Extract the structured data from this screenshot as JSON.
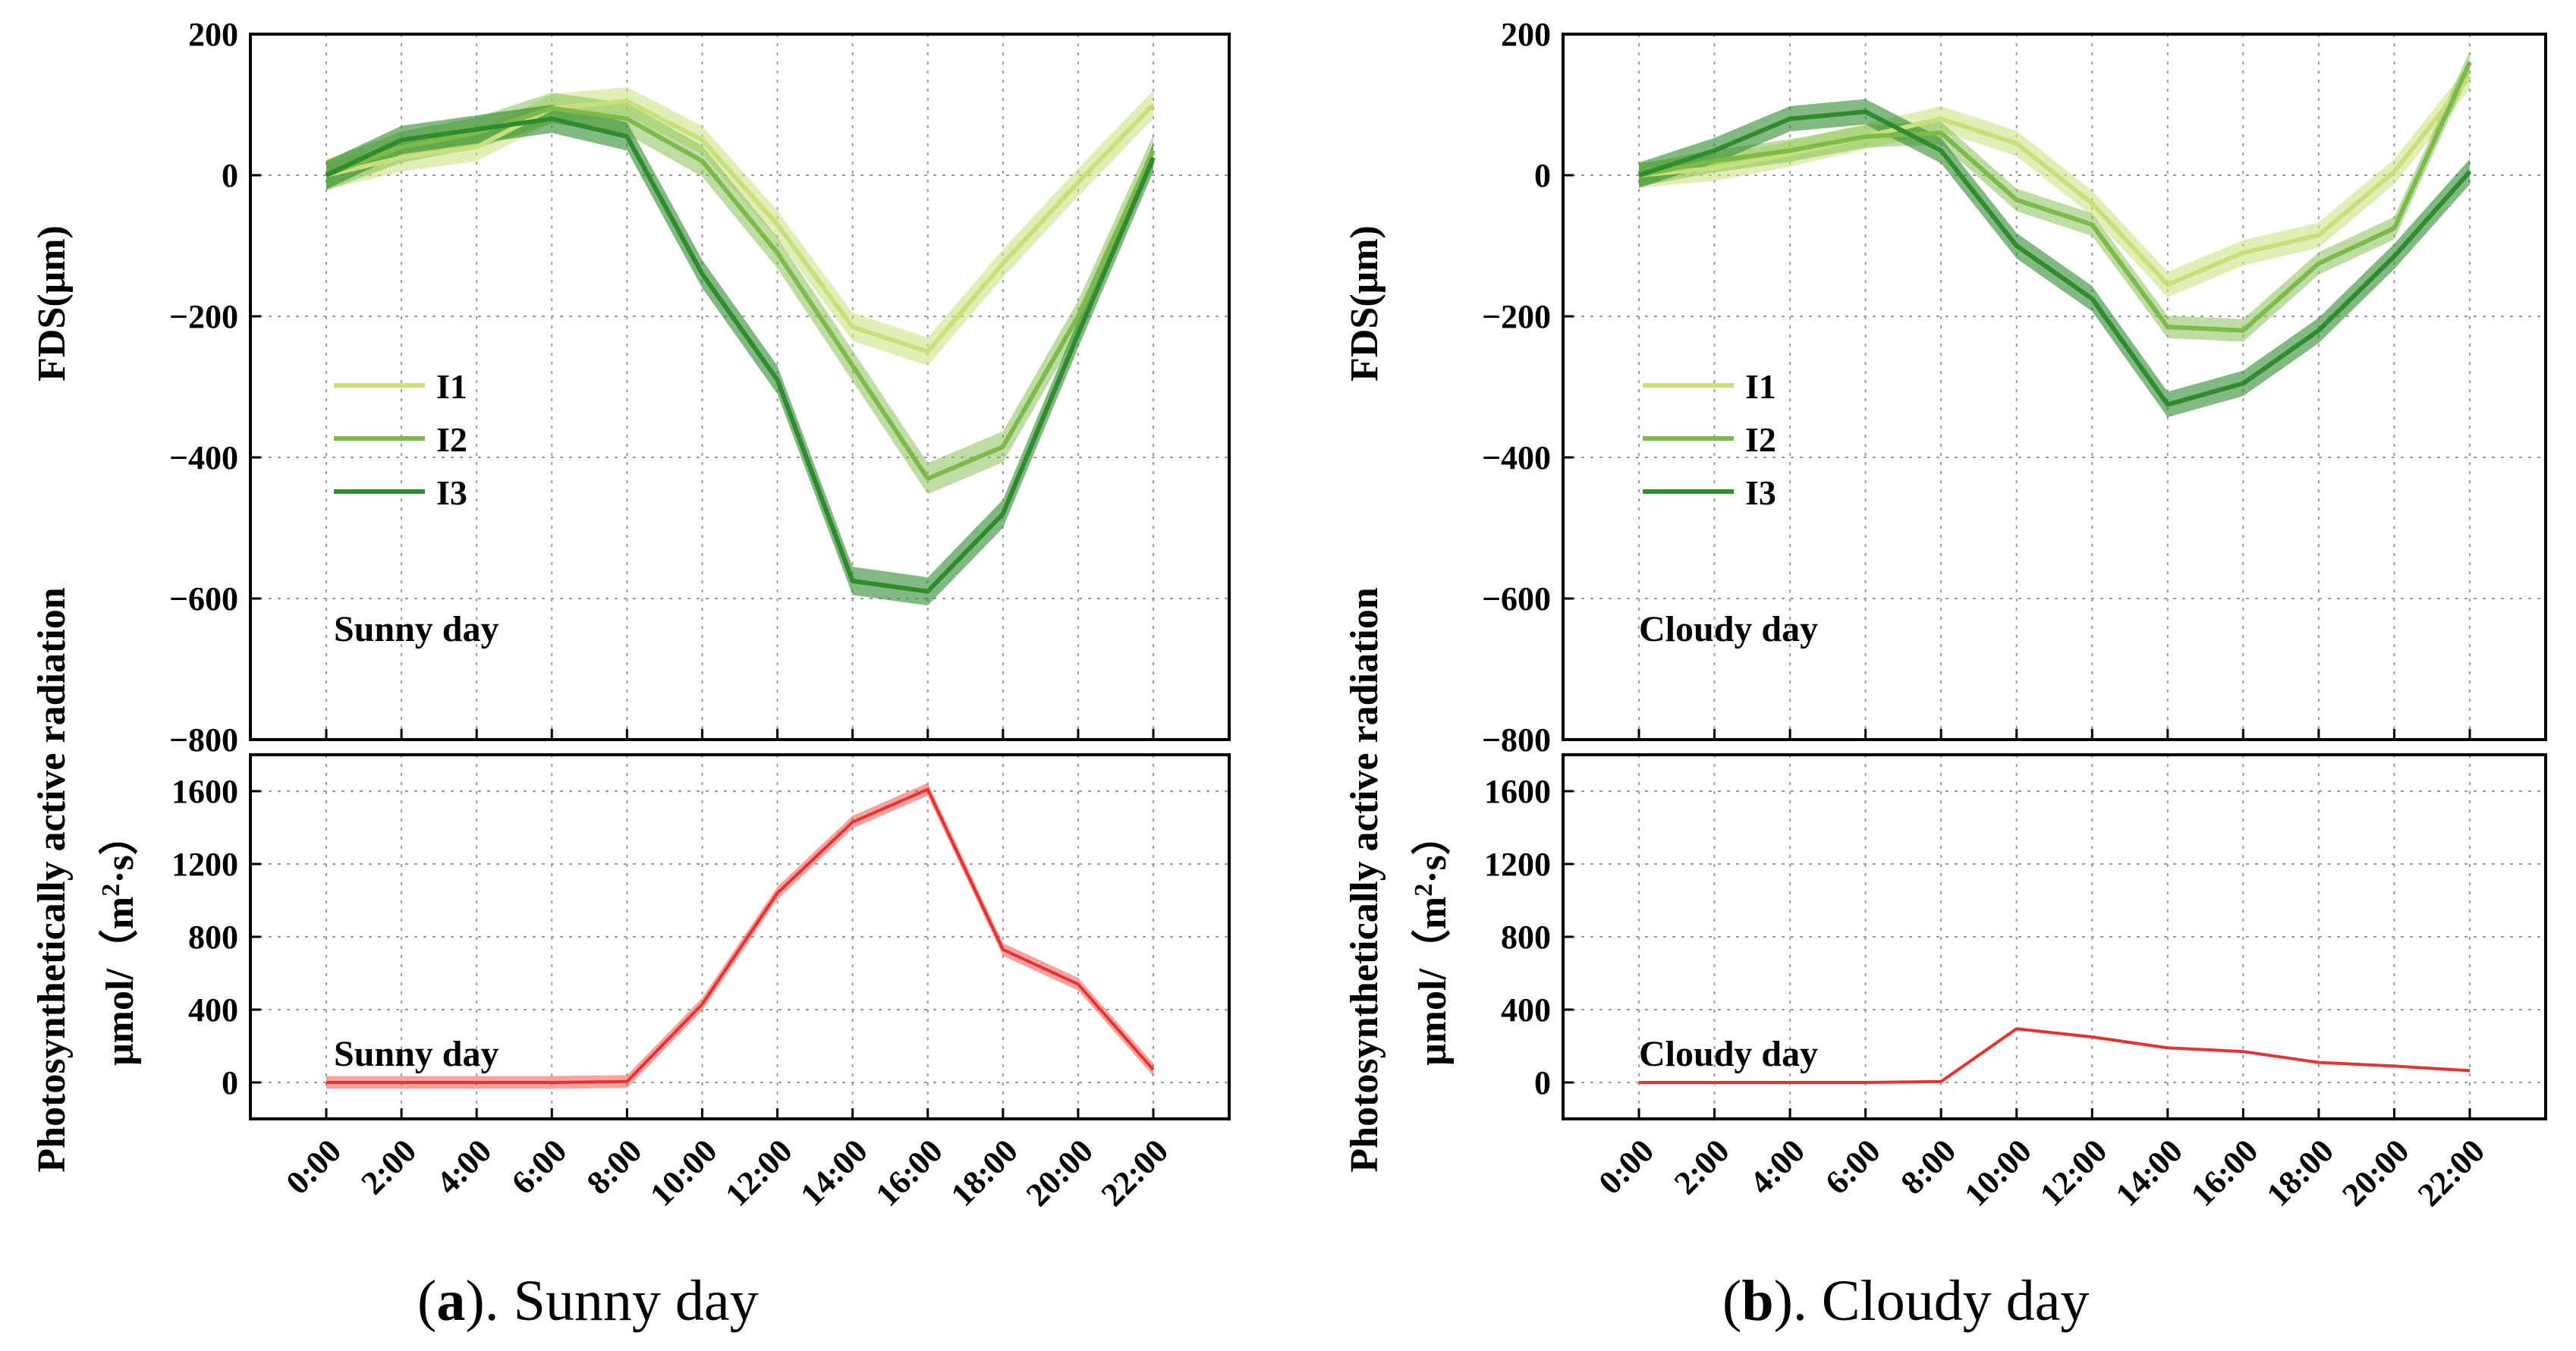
{
  "times": [
    "0:00",
    "2:00",
    "4:00",
    "6:00",
    "8:00",
    "10:00",
    "12:00",
    "14:00",
    "16:00",
    "18:00",
    "20:00",
    "22:00"
  ],
  "colors": {
    "I1": "#c8e07a",
    "I2": "#7cbb4a",
    "I3": "#2e8b2e",
    "par": "#e8322f"
  },
  "fds_ylabel": "FDS(μm)",
  "par_ylabel_line1": "Photosynthetically active radiation",
  "par_ylabel_line2_pre": "μmol/（m",
  "par_ylabel_sup": "2",
  "par_ylabel_line2_post": "·s）",
  "panels": [
    {
      "id": "a",
      "caption_letter": "a",
      "caption_text": "). Sunny day",
      "annotation_fds": "Sunny day",
      "annotation_par": "Sunny day"
    },
    {
      "id": "b",
      "caption_letter": "b",
      "caption_text": "). Cloudy day",
      "annotation_fds": "Cloudy day",
      "annotation_par": "Cloudy day"
    }
  ],
  "chart_data": [
    {
      "panel": "a",
      "subplot": "FDS",
      "type": "line",
      "x": [
        "0:00",
        "2:00",
        "4:00",
        "6:00",
        "8:00",
        "10:00",
        "12:00",
        "14:00",
        "16:00",
        "18:00",
        "20:00",
        "22:00"
      ],
      "ylim": [
        -800,
        200
      ],
      "yticks": [
        200,
        0,
        -200,
        -400,
        -600,
        -800
      ],
      "grid": true,
      "legend_position": "left",
      "series": [
        {
          "name": "I1",
          "values": [
            0,
            25,
            40,
            95,
            105,
            50,
            -70,
            -215,
            -250,
            -125,
            -10,
            100
          ],
          "spread": 20
        },
        {
          "name": "I2",
          "values": [
            0,
            40,
            60,
            95,
            80,
            20,
            -110,
            -270,
            -430,
            -385,
            -200,
            35
          ],
          "spread": 22
        },
        {
          "name": "I3",
          "values": [
            0,
            50,
            65,
            80,
            55,
            -140,
            -290,
            -575,
            -590,
            -480,
            -225,
            25
          ],
          "spread": 20
        }
      ]
    },
    {
      "panel": "a",
      "subplot": "PAR",
      "type": "line",
      "x": [
        "0:00",
        "2:00",
        "4:00",
        "6:00",
        "8:00",
        "10:00",
        "12:00",
        "14:00",
        "16:00",
        "18:00",
        "20:00",
        "22:00"
      ],
      "ylim": [
        -200,
        1800
      ],
      "yticks": [
        1600,
        1200,
        800,
        400,
        0
      ],
      "grid": true,
      "series": [
        {
          "name": "",
          "values": [
            0,
            0,
            0,
            0,
            5,
            430,
            1040,
            1430,
            1610,
            730,
            540,
            70
          ],
          "spread": 35
        }
      ]
    },
    {
      "panel": "b",
      "subplot": "FDS",
      "type": "line",
      "x": [
        "0:00",
        "2:00",
        "4:00",
        "6:00",
        "8:00",
        "10:00",
        "12:00",
        "14:00",
        "16:00",
        "18:00",
        "20:00",
        "22:00"
      ],
      "ylim": [
        -800,
        200
      ],
      "yticks": [
        200,
        0,
        -200,
        -400,
        -600,
        -800
      ],
      "grid": true,
      "legend_position": "left",
      "series": [
        {
          "name": "I1",
          "values": [
            0,
            10,
            30,
            55,
            80,
            45,
            -40,
            -155,
            -110,
            -85,
            5,
            140
          ],
          "spread": 18
        },
        {
          "name": "I2",
          "values": [
            0,
            20,
            35,
            55,
            60,
            -35,
            -70,
            -215,
            -220,
            -125,
            -75,
            160
          ],
          "spread": 16
        },
        {
          "name": "I3",
          "values": [
            0,
            35,
            80,
            90,
            35,
            -100,
            -175,
            -325,
            -295,
            -220,
            -115,
            5
          ],
          "spread": 18
        }
      ]
    },
    {
      "panel": "b",
      "subplot": "PAR",
      "type": "line",
      "x": [
        "0:00",
        "2:00",
        "4:00",
        "6:00",
        "8:00",
        "10:00",
        "12:00",
        "14:00",
        "16:00",
        "18:00",
        "20:00",
        "22:00"
      ],
      "ylim": [
        -200,
        1800
      ],
      "yticks": [
        1600,
        1200,
        800,
        400,
        0
      ],
      "grid": true,
      "series": [
        {
          "name": "",
          "values": [
            0,
            0,
            0,
            0,
            5,
            295,
            250,
            190,
            170,
            110,
            90,
            65
          ],
          "spread": 6
        }
      ]
    }
  ]
}
